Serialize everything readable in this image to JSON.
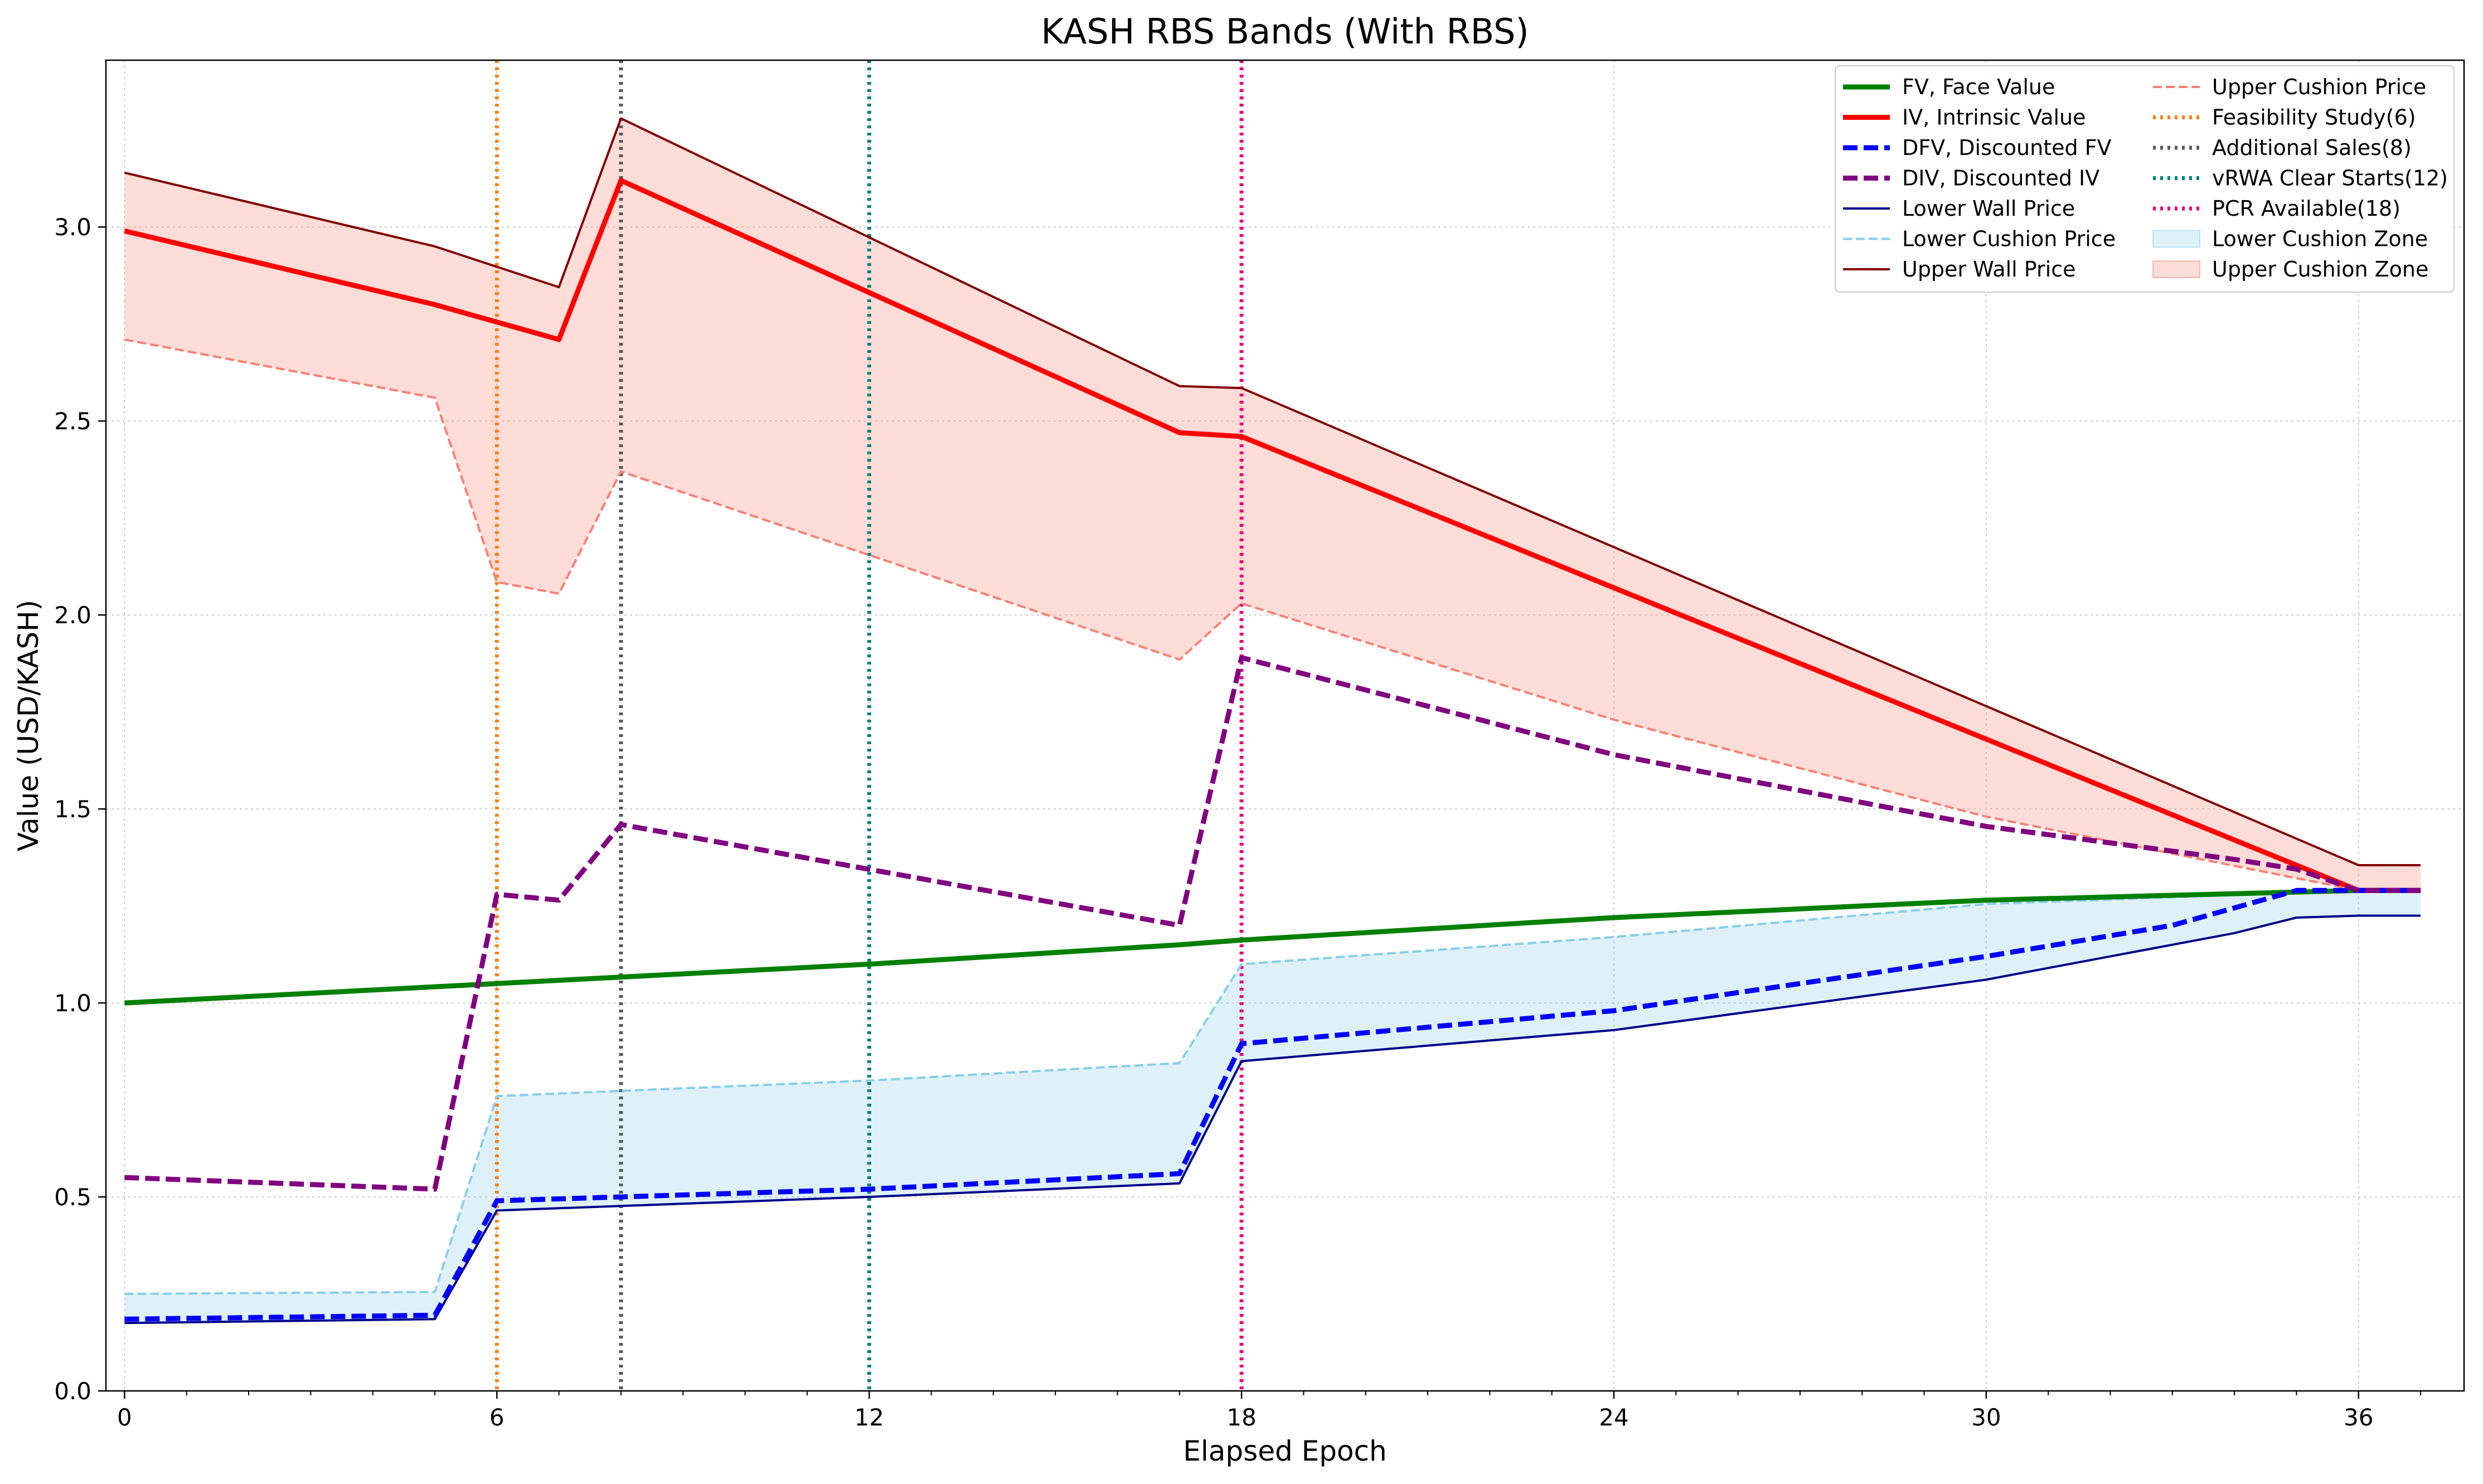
{
  "chart_data": {
    "type": "line",
    "title": "KASH RBS Bands (With RBS)",
    "xlabel": "Elapsed Epoch",
    "ylabel": "Value (USD/KASH)",
    "xlim": [
      -0.3,
      37.7
    ],
    "ylim": [
      0.0,
      3.43
    ],
    "grid": true,
    "legend_position": "top-right",
    "x_ticks": [
      0,
      6,
      12,
      18,
      24,
      30,
      36
    ],
    "y_ticks": [
      0.0,
      0.5,
      1.0,
      1.5,
      2.0,
      2.5,
      3.0
    ],
    "x_tick_labels": [
      "0",
      "6",
      "12",
      "18",
      "24",
      "30",
      "36"
    ],
    "y_tick_labels": [
      "0.0",
      "0.5",
      "1.0",
      "1.5",
      "2.0",
      "2.5",
      "3.0"
    ],
    "series": [
      {
        "name": "FV, Face Value",
        "color": "#008000",
        "style": "solid",
        "width": 3,
        "x": [
          0,
          6,
          12,
          17,
          18,
          24,
          30,
          36,
          37
        ],
        "y": [
          1.0,
          1.05,
          1.1,
          1.15,
          1.162,
          1.22,
          1.265,
          1.29,
          1.29
        ]
      },
      {
        "name": "IV, Intrinsic Value",
        "color": "#ff0000",
        "style": "solid",
        "width": 3,
        "x": [
          0,
          5,
          7,
          8,
          17,
          18,
          36,
          37
        ],
        "y": [
          2.99,
          2.8,
          2.71,
          3.12,
          2.47,
          2.46,
          1.29,
          1.29
        ]
      },
      {
        "name": "DFV, Discounted FV",
        "color": "#0000ff",
        "style": "dashed",
        "width": 3,
        "x": [
          0,
          5,
          6,
          7,
          8,
          12,
          17,
          18,
          24,
          30,
          33,
          35,
          37
        ],
        "y": [
          0.185,
          0.195,
          0.49,
          0.495,
          0.5,
          0.52,
          0.56,
          0.895,
          0.98,
          1.12,
          1.2,
          1.29,
          1.29
        ]
      },
      {
        "name": "DIV, Discounted IV",
        "color": "#800080",
        "style": "dashed",
        "width": 3,
        "x": [
          0,
          5,
          6,
          7,
          8,
          17,
          18,
          24,
          30,
          34,
          35,
          36,
          37
        ],
        "y": [
          0.55,
          0.52,
          1.28,
          1.265,
          1.46,
          1.2,
          1.89,
          1.64,
          1.455,
          1.37,
          1.345,
          1.29,
          1.29
        ]
      },
      {
        "name": "Lower Wall Price",
        "color": "#00008b",
        "style": "solid",
        "width": 1.5,
        "x": [
          0,
          5,
          6,
          12,
          17,
          18,
          24,
          30,
          34,
          35,
          36,
          37
        ],
        "y": [
          0.175,
          0.185,
          0.465,
          0.5,
          0.535,
          0.85,
          0.93,
          1.06,
          1.18,
          1.22,
          1.225,
          1.225
        ]
      },
      {
        "name": "Lower Cushion Price",
        "color": "#87ceeb",
        "style": "dashed",
        "width": 1.5,
        "x": [
          0,
          5,
          6,
          12,
          17,
          18,
          24,
          30,
          36,
          37
        ],
        "y": [
          0.25,
          0.255,
          0.76,
          0.8,
          0.845,
          1.1,
          1.17,
          1.255,
          1.29,
          1.29
        ]
      },
      {
        "name": "Upper Wall Price",
        "color": "#800000",
        "style": "solid",
        "width": 1.5,
        "x": [
          0,
          5,
          7,
          8,
          17,
          18,
          36,
          37
        ],
        "y": [
          3.14,
          2.95,
          2.845,
          3.28,
          2.59,
          2.585,
          1.355,
          1.355
        ]
      },
      {
        "name": "Upper Cushion Price",
        "color": "#fa8072",
        "style": "dashed",
        "width": 1.5,
        "x": [
          0,
          5,
          6,
          7,
          8,
          17,
          18,
          24,
          30,
          36,
          37
        ],
        "y": [
          2.71,
          2.56,
          2.085,
          2.055,
          2.37,
          1.885,
          2.03,
          1.73,
          1.48,
          1.29,
          1.29
        ]
      }
    ],
    "vertical_lines": [
      {
        "name": "Feasibility Study(6)",
        "x": 6,
        "color": "#ff7f0e"
      },
      {
        "name": "Additional Sales(8)",
        "x": 8,
        "color": "#595959"
      },
      {
        "name": "vRWA Clear Starts(12)",
        "x": 12,
        "color": "#008080"
      },
      {
        "name": "PCR Available(18)",
        "x": 18,
        "color": "#e5007e"
      }
    ],
    "zones": [
      {
        "name": "Lower Cushion Zone",
        "color": "#87ceeb",
        "between": [
          "Lower Wall Price",
          "Lower Cushion Price"
        ]
      },
      {
        "name": "Upper Cushion Zone",
        "color": "#fa8072",
        "between": [
          "Upper Cushion Price",
          "Upper Wall Price"
        ]
      }
    ],
    "legend": [
      {
        "name": "FV, Face Value",
        "kind": "line",
        "color": "#008000",
        "style": "solid",
        "width": 3
      },
      {
        "name": "IV, Intrinsic Value",
        "kind": "line",
        "color": "#ff0000",
        "style": "solid",
        "width": 3
      },
      {
        "name": "DFV, Discounted FV",
        "kind": "line",
        "color": "#0000ff",
        "style": "dashed",
        "width": 3
      },
      {
        "name": "DIV, Discounted IV",
        "kind": "line",
        "color": "#800080",
        "style": "dashed",
        "width": 3
      },
      {
        "name": "Lower Wall Price",
        "kind": "line",
        "color": "#00008b",
        "style": "solid",
        "width": 1.5
      },
      {
        "name": "Lower Cushion Price",
        "kind": "line",
        "color": "#87ceeb",
        "style": "dashed",
        "width": 1.5
      },
      {
        "name": "Upper Wall Price",
        "kind": "line",
        "color": "#800000",
        "style": "solid",
        "width": 1.5
      },
      {
        "name": "Upper Cushion Price",
        "kind": "line",
        "color": "#fa8072",
        "style": "dashed",
        "width": 1.5
      },
      {
        "name": "Feasibility Study(6)",
        "kind": "line",
        "color": "#ff7f0e",
        "style": "dotted",
        "width": 3
      },
      {
        "name": "Additional Sales(8)",
        "kind": "line",
        "color": "#595959",
        "style": "dotted",
        "width": 3
      },
      {
        "name": "vRWA Clear Starts(12)",
        "kind": "line",
        "color": "#008080",
        "style": "dotted",
        "width": 3
      },
      {
        "name": "PCR Available(18)",
        "kind": "line",
        "color": "#e5007e",
        "style": "dotted",
        "width": 3
      },
      {
        "name": "Lower Cushion Zone",
        "kind": "patch",
        "color": "#87ceeb"
      },
      {
        "name": "Upper Cushion Zone",
        "kind": "patch",
        "color": "#fa8072"
      }
    ]
  }
}
